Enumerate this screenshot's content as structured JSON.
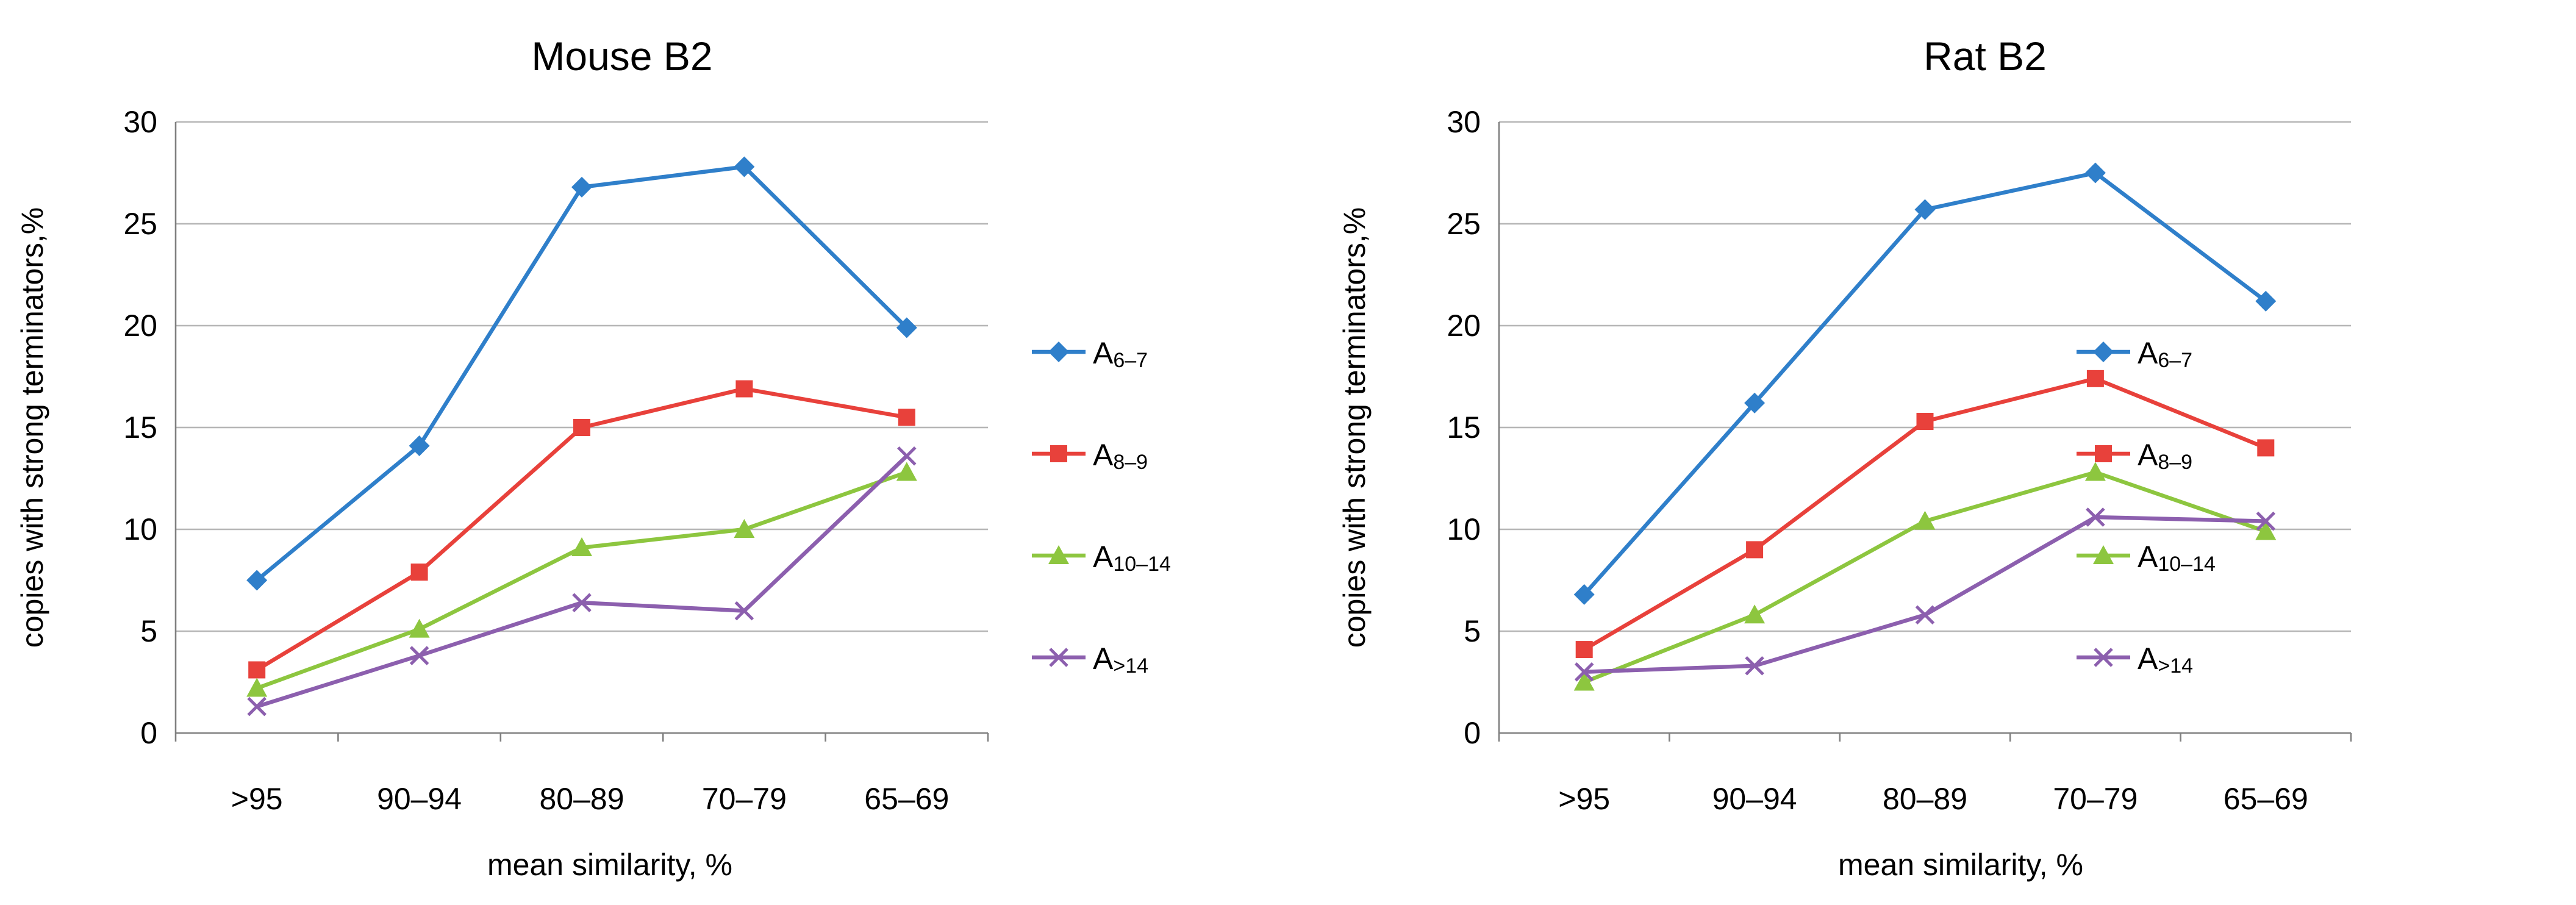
{
  "chart_data": [
    {
      "type": "line",
      "title": "Mouse B2",
      "xlabel": "mean similarity, %",
      "ylabel": "copies with strong terminators,%",
      "categories": [
        ">95",
        "90–94",
        "80–89",
        "70–79",
        "65–69"
      ],
      "ylim": [
        0,
        30
      ],
      "yticks": [
        0,
        5,
        10,
        15,
        20,
        25,
        30
      ],
      "grid": true,
      "legend": "right",
      "series": [
        {
          "name": "A",
          "sub": "6–7",
          "marker": "diamond",
          "color": "#2f7fca",
          "values": [
            7.5,
            14.1,
            26.8,
            27.8,
            19.9
          ]
        },
        {
          "name": "A",
          "sub": "8–9",
          "marker": "square",
          "color": "#e8413b",
          "values": [
            3.1,
            7.9,
            15.0,
            16.9,
            15.5
          ]
        },
        {
          "name": "A",
          "sub": "10–14",
          "marker": "triangle",
          "color": "#8dc63f",
          "values": [
            2.2,
            5.1,
            9.1,
            10.0,
            12.8
          ]
        },
        {
          "name": "A",
          "sub": ">14",
          "marker": "x",
          "color": "#8c5fae",
          "values": [
            1.3,
            3.8,
            6.4,
            6.0,
            13.6
          ]
        }
      ]
    },
    {
      "type": "line",
      "title": "Rat B2",
      "xlabel": "mean similarity, %",
      "ylabel": "copies with strong terminators,%",
      "categories": [
        ">95",
        "90–94",
        "80–89",
        "70–79",
        "65–69"
      ],
      "ylim": [
        0,
        30
      ],
      "yticks": [
        0,
        5,
        10,
        15,
        20,
        25,
        30
      ],
      "grid": true,
      "legend": "right",
      "series": [
        {
          "name": "A",
          "sub": "6–7",
          "marker": "diamond",
          "color": "#2f7fca",
          "values": [
            6.8,
            16.2,
            25.7,
            27.5,
            21.2
          ]
        },
        {
          "name": "A",
          "sub": "8–9",
          "marker": "square",
          "color": "#e8413b",
          "values": [
            4.1,
            9.0,
            15.3,
            17.4,
            14.0
          ]
        },
        {
          "name": "A",
          "sub": "10–14",
          "marker": "triangle",
          "color": "#8dc63f",
          "values": [
            2.5,
            5.8,
            10.4,
            12.8,
            9.9
          ]
        },
        {
          "name": "A",
          "sub": ">14",
          "marker": "x",
          "color": "#8c5fae",
          "values": [
            3.0,
            3.3,
            5.8,
            10.6,
            10.4
          ]
        }
      ]
    }
  ]
}
